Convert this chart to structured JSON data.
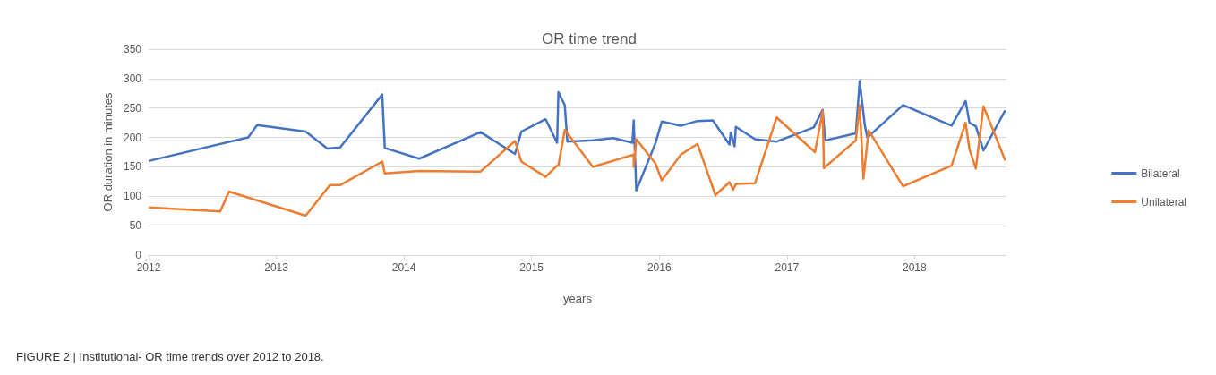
{
  "chart_data": {
    "type": "line",
    "title": "OR time trend",
    "xlabel": "years",
    "ylabel": "OR duration in minutes",
    "annotations": [
      "FIGURE 2 | Institutional- OR time trends over 2012 to 2018."
    ],
    "xlim": [
      2012,
      2018.72
    ],
    "xticks": [
      2012,
      2013,
      2014,
      2015,
      2016,
      2017,
      2018
    ],
    "ylim": [
      0,
      350
    ],
    "yticks": [
      0,
      50,
      100,
      150,
      200,
      250,
      300,
      350
    ],
    "grid": "y",
    "legend": "right",
    "marker": "none",
    "line_style": "solid",
    "series": [
      {
        "name": "Bilateral",
        "color": "#4472c4",
        "x": [
          2012.0,
          2012.78,
          2012.85,
          2013.23,
          2013.4,
          2013.5,
          2013.83,
          2013.85,
          2014.12,
          2014.6,
          2014.87,
          2014.92,
          2015.11,
          2015.2,
          2015.21,
          2015.26,
          2015.28,
          2015.48,
          2015.64,
          2015.79,
          2015.8,
          2015.82,
          2015.97,
          2016.02,
          2016.17,
          2016.3,
          2016.42,
          2016.55,
          2016.56,
          2016.59,
          2016.6,
          2016.75,
          2016.92,
          2017.21,
          2017.28,
          2017.3,
          2017.54,
          2017.57,
          2017.61,
          2017.63,
          2017.91,
          2018.29,
          2018.4,
          2018.43,
          2018.48,
          2018.54,
          2018.71
        ],
        "values": [
          160,
          200,
          221,
          210,
          181,
          183,
          273,
          182,
          164,
          209,
          172,
          210,
          231,
          191,
          277,
          255,
          193,
          195,
          199,
          191,
          229,
          110,
          190,
          227,
          220,
          228,
          229,
          188,
          208,
          185,
          218,
          197,
          193,
          217,
          247,
          195,
          207,
          296,
          221,
          200,
          255,
          220,
          262,
          225,
          219,
          178,
          246
        ]
      },
      {
        "name": "Unilateral",
        "color": "#ed7d31",
        "x": [
          2012.0,
          2012.56,
          2012.63,
          2013.23,
          2013.42,
          2013.5,
          2013.83,
          2013.85,
          2014.12,
          2014.6,
          2014.87,
          2014.92,
          2015.11,
          2015.2,
          2015.21,
          2015.26,
          2015.48,
          2015.8,
          2015.8,
          2015.82,
          2015.97,
          2016.02,
          2016.17,
          2016.3,
          2016.44,
          2016.55,
          2016.58,
          2016.6,
          2016.75,
          2016.92,
          2017.22,
          2017.28,
          2017.29,
          2017.54,
          2017.57,
          2017.6,
          2017.64,
          2017.91,
          2018.29,
          2018.4,
          2018.43,
          2018.48,
          2018.54,
          2018.71
        ],
        "values": [
          81,
          74,
          108,
          67,
          119,
          119,
          159,
          139,
          143,
          142,
          194,
          159,
          133,
          152,
          152,
          213,
          150,
          171,
          150,
          197,
          156,
          127,
          171,
          189,
          102,
          124,
          111,
          121,
          122,
          234,
          175,
          245,
          148,
          195,
          255,
          130,
          212,
          117,
          152,
          225,
          180,
          147,
          253,
          161
        ]
      }
    ]
  }
}
